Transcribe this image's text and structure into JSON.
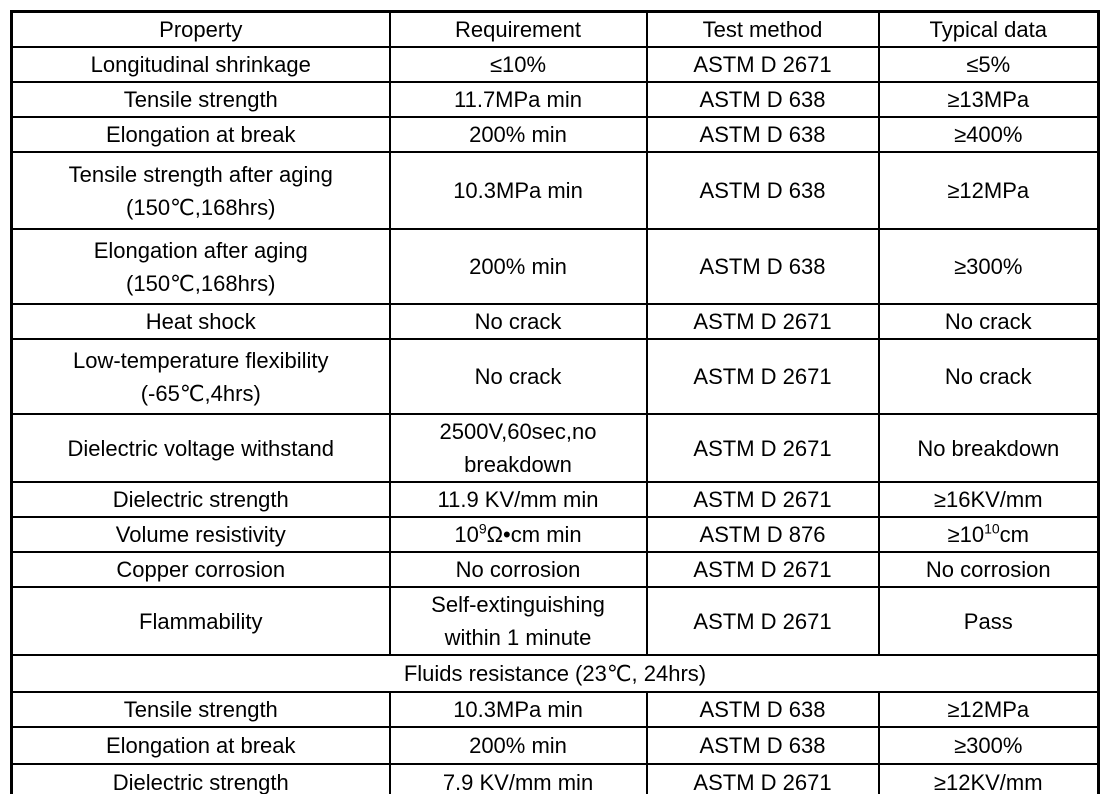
{
  "colors": {
    "background": "#ffffff",
    "border": "#000000",
    "text": "#000000"
  },
  "table": {
    "columns": [
      "Property",
      "Requirement",
      "Test method",
      "Typical data"
    ],
    "rows": [
      {
        "cells": [
          "Longitudinal shrinkage",
          "≤10%",
          "ASTM D 2671",
          "≤5%"
        ]
      },
      {
        "cells": [
          "Tensile strength",
          "11.7MPa min",
          "ASTM D 638",
          "≥13MPa"
        ]
      },
      {
        "cells": [
          "Elongation at break",
          "200% min",
          "ASTM D 638",
          "≥400%"
        ]
      },
      {
        "cells": [
          "Tensile strength after aging\n(150℃,168hrs)",
          "10.3MPa min",
          "ASTM D 638",
          "≥12MPa"
        ]
      },
      {
        "cells": [
          "Elongation after aging\n(150℃,168hrs)",
          "200% min",
          "ASTM D 638",
          "≥300%"
        ]
      },
      {
        "cells": [
          "Heat shock",
          "No crack",
          "ASTM D 2671",
          "No crack"
        ]
      },
      {
        "cells": [
          "Low-temperature flexibility\n(-65℃,4hrs)",
          "No crack",
          "ASTM D 2671",
          "No crack"
        ]
      },
      {
        "cells": [
          "Dielectric voltage withstand",
          "2500V,60sec,no\nbreakdown",
          "ASTM D 2671",
          "No breakdown"
        ]
      },
      {
        "cells": [
          "Dielectric strength",
          "11.9 KV/mm min",
          "ASTM D 2671",
          "≥16KV/mm"
        ]
      },
      {
        "cells": [
          "Volume resistivity",
          [
            {
              "t": "text",
              "v": "10"
            },
            {
              "t": "sup",
              "v": "9"
            },
            {
              "t": "text",
              "v": "Ω•cm min"
            }
          ],
          "ASTM D 876",
          [
            {
              "t": "text",
              "v": "≥10"
            },
            {
              "t": "sup",
              "v": "10"
            },
            {
              "t": "text",
              "v": "cm"
            }
          ]
        ]
      },
      {
        "cells": [
          "Copper corrosion",
          "No corrosion",
          "ASTM D 2671",
          "No corrosion"
        ]
      },
      {
        "cells": [
          "Flammability",
          "Self-extinguishing\nwithin 1 minute",
          "ASTM D 2671",
          "Pass"
        ]
      },
      {
        "section": "Fluids resistance (23℃, 24hrs)"
      },
      {
        "cells": [
          "Tensile strength",
          "10.3MPa min",
          "ASTM D 638",
          "≥12MPa"
        ]
      },
      {
        "cells": [
          "Elongation at break",
          "200% min",
          "ASTM D 638",
          "≥300%"
        ]
      },
      {
        "cells": [
          "Dielectric strength",
          "7.9 KV/mm min",
          "ASTM D 2671",
          "≥12KV/mm"
        ]
      }
    ]
  }
}
